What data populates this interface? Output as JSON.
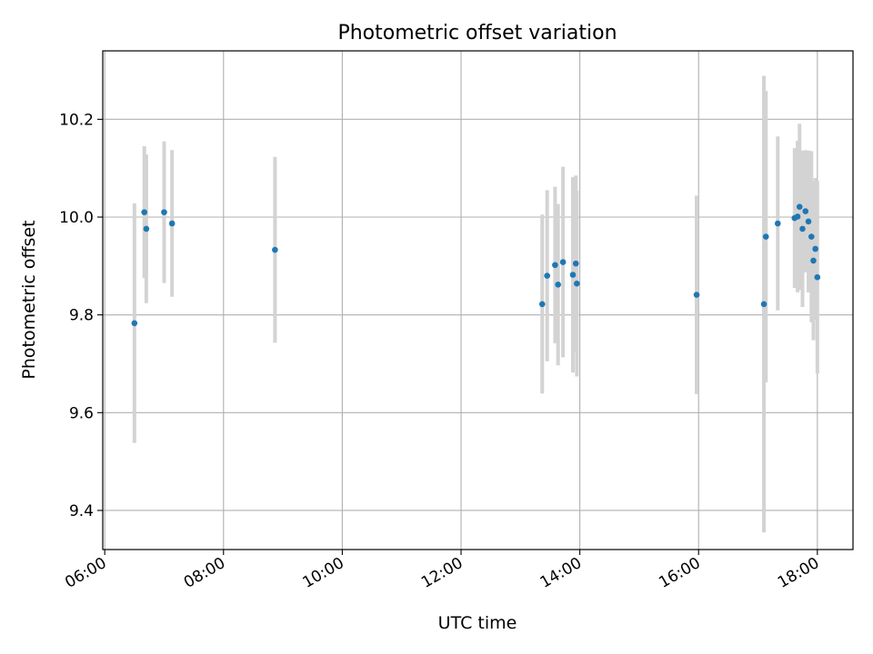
{
  "chart_data": {
    "type": "scatter",
    "title": "Photometric offset variation",
    "xlabel": "UTC time",
    "ylabel": "Photometric offset",
    "x_ticks": [
      "06:00",
      "08:00",
      "10:00",
      "12:00",
      "14:00",
      "16:00",
      "18:00"
    ],
    "y_ticks": [
      "9.4",
      "9.6",
      "9.8",
      "10.0",
      "10.2"
    ],
    "xlim": [
      "05:58",
      "18:36"
    ],
    "ylim": [
      9.32,
      10.34
    ],
    "grid": true,
    "colors": {
      "points": "#1f77b4",
      "errorbars": "#d3d3d3",
      "grid": "#b0b0b0"
    },
    "points": [
      {
        "x": "06:30",
        "y": 9.783,
        "yerr": 0.245
      },
      {
        "x": "06:40",
        "y": 10.01,
        "yerr": 0.135
      },
      {
        "x": "06:42",
        "y": 9.976,
        "yerr": 0.152
      },
      {
        "x": "07:00",
        "y": 10.01,
        "yerr": 0.145
      },
      {
        "x": "07:08",
        "y": 9.987,
        "yerr": 0.15
      },
      {
        "x": "08:52",
        "y": 9.933,
        "yerr": 0.19
      },
      {
        "x": "13:22",
        "y": 9.822,
        "yerr": 0.183
      },
      {
        "x": "13:27",
        "y": 9.88,
        "yerr": 0.175
      },
      {
        "x": "13:35",
        "y": 9.902,
        "yerr": 0.16
      },
      {
        "x": "13:38",
        "y": 9.862,
        "yerr": 0.165
      },
      {
        "x": "13:43",
        "y": 9.908,
        "yerr": 0.195
      },
      {
        "x": "13:53",
        "y": 9.882,
        "yerr": 0.2
      },
      {
        "x": "13:56",
        "y": 9.905,
        "yerr": 0.18
      },
      {
        "x": "13:57",
        "y": 9.864,
        "yerr": 0.19
      },
      {
        "x": "15:58",
        "y": 9.841,
        "yerr": 0.203
      },
      {
        "x": "17:06",
        "y": 9.822,
        "yerr": 0.467
      },
      {
        "x": "17:08",
        "y": 9.96,
        "yerr": 0.298
      },
      {
        "x": "17:20",
        "y": 9.987,
        "yerr": 0.178
      },
      {
        "x": "17:37",
        "y": 9.998,
        "yerr": 0.143
      },
      {
        "x": "17:40",
        "y": 10.001,
        "yerr": 0.155
      },
      {
        "x": "17:42",
        "y": 10.021,
        "yerr": 0.17
      },
      {
        "x": "17:45",
        "y": 9.976,
        "yerr": 0.16
      },
      {
        "x": "17:48",
        "y": 10.012,
        "yerr": 0.125
      },
      {
        "x": "17:51",
        "y": 9.991,
        "yerr": 0.145
      },
      {
        "x": "17:54",
        "y": 9.96,
        "yerr": 0.175
      },
      {
        "x": "17:56",
        "y": 9.911,
        "yerr": 0.163
      },
      {
        "x": "17:58",
        "y": 9.935,
        "yerr": 0.145
      },
      {
        "x": "18:00",
        "y": 9.877,
        "yerr": 0.197
      }
    ]
  }
}
